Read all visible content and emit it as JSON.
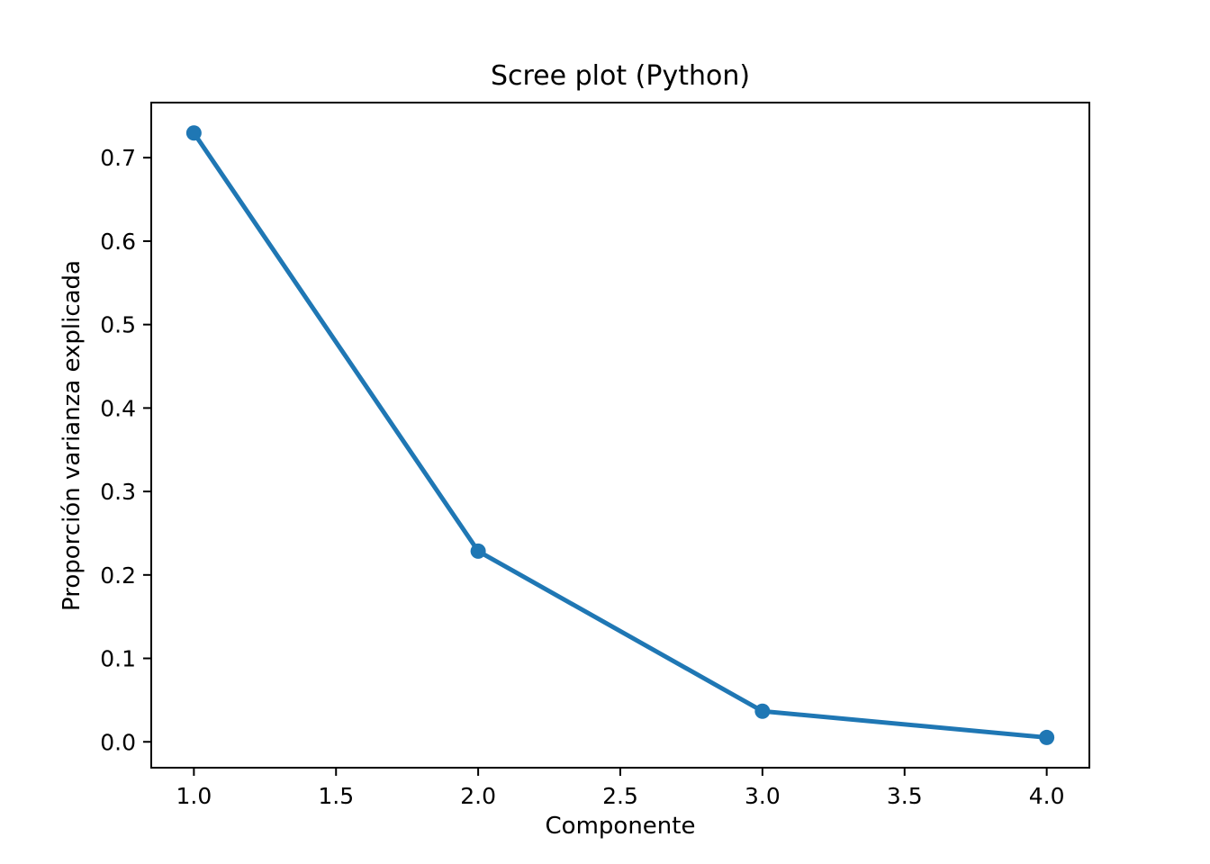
{
  "figure": {
    "background_color": "#ffffff",
    "text_color": "#000000"
  },
  "chart_data": {
    "type": "line",
    "title": "Scree plot (Python)",
    "xlabel": "Componente",
    "ylabel": "Proporción varianza explicada",
    "x": [
      1.0,
      2.0,
      3.0,
      4.0
    ],
    "values": [
      0.7296,
      0.2285,
      0.0367,
      0.0052
    ],
    "xlim": [
      0.85,
      4.15
    ],
    "ylim": [
      -0.031,
      0.766
    ],
    "x_ticks": [
      1.0,
      1.5,
      2.0,
      2.5,
      3.0,
      3.5,
      4.0
    ],
    "x_tick_labels": [
      "1.0",
      "1.5",
      "2.0",
      "2.5",
      "3.0",
      "3.5",
      "4.0"
    ],
    "y_ticks": [
      0.0,
      0.1,
      0.2,
      0.3,
      0.4,
      0.5,
      0.6,
      0.7
    ],
    "y_tick_labels": [
      "0.0",
      "0.1",
      "0.2",
      "0.3",
      "0.4",
      "0.5",
      "0.6",
      "0.7"
    ],
    "line_color": "#1f77b4",
    "marker": "o",
    "grid": false,
    "legend": null
  }
}
